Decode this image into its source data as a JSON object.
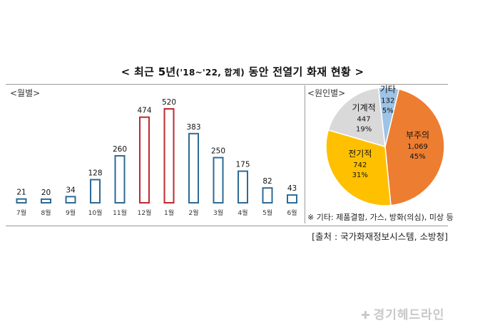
{
  "title": {
    "prefix": "< 최근 5년",
    "range": "('18~'22, 합계)",
    "suffix": " 동안 전열기 화재 현황 >"
  },
  "monthly": {
    "label": "<월별>",
    "chart_data": {
      "type": "bar",
      "categories": [
        "7월",
        "8월",
        "9월",
        "10월",
        "11월",
        "12월",
        "1월",
        "2월",
        "3월",
        "4월",
        "5월",
        "6월"
      ],
      "values": [
        21,
        20,
        34,
        128,
        260,
        474,
        520,
        383,
        250,
        175,
        82,
        43
      ],
      "highlight": [
        "12월",
        "1월"
      ],
      "colors": {
        "bar": "#2e6a95",
        "highlight": "#c0272d"
      },
      "grid": false
    }
  },
  "cause": {
    "label": "<원인별>",
    "chart_data": {
      "type": "pie",
      "slices": [
        {
          "label": "부주의",
          "value": 1069,
          "value_text": "1,069",
          "percent_text": "45%",
          "color": "#ed7d31"
        },
        {
          "label": "전기적",
          "value": 742,
          "value_text": "742",
          "percent_text": "31%",
          "color": "#ffc000"
        },
        {
          "label": "기계적",
          "value": 447,
          "value_text": "447",
          "percent_text": "19%",
          "color": "#d9d9d9"
        },
        {
          "label": "기타",
          "value": 132,
          "value_text": "132",
          "percent_text": "5%",
          "color": "#9dc3e6"
        }
      ]
    },
    "note": "※ 기타: 제품결함, 가스, 방화(의심), 미상 등"
  },
  "source": "[출처 : 국가화재정보시스템, 소방청]",
  "watermark": "경기헤드라인"
}
